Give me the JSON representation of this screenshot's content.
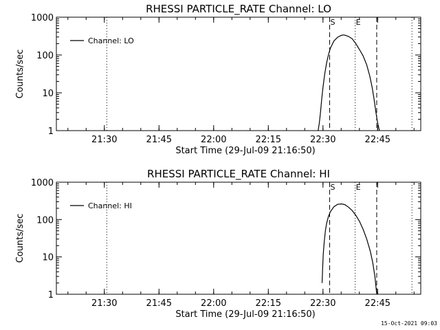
{
  "footer_timestamp": "15-Oct-2021 09:03",
  "chart_data": [
    {
      "type": "line",
      "title": "RHESSI PARTICLE_RATE Channel: LO",
      "xlabel": "Start Time (29-Jul-09 21:16:50)",
      "ylabel": "Counts/sec",
      "yscale": "log",
      "xlim": [
        "21:16:50",
        "22:56:50"
      ],
      "ylim": [
        1,
        1000
      ],
      "xticks": [
        "21:30",
        "21:45",
        "22:00",
        "22:15",
        "22:30",
        "22:45"
      ],
      "yticks": [
        "1",
        "10",
        "100",
        "1000"
      ],
      "grid": false,
      "legend": {
        "position": "top-left",
        "entries": [
          "Channel: LO"
        ]
      },
      "markers": [
        {
          "time": "21:30:40",
          "style": "dotted",
          "label": ""
        },
        {
          "time": "22:31:50",
          "style": "dashed",
          "label": "S"
        },
        {
          "time": "22:38:50",
          "style": "dotted",
          "label": "E"
        },
        {
          "time": "22:44:45",
          "style": "dashed",
          "label": ""
        },
        {
          "time": "22:54:25",
          "style": "dotted",
          "label": ""
        }
      ],
      "series": [
        {
          "name": "Channel: LO",
          "x": [
            "22:28:40",
            "22:29:00",
            "22:29:20",
            "22:29:40",
            "22:30:00",
            "22:30:30",
            "22:31:00",
            "22:31:30",
            "22:32:00",
            "22:33:00",
            "22:34:00",
            "22:35:00",
            "22:35:30",
            "22:36:00",
            "22:37:00",
            "22:38:00",
            "22:39:00",
            "22:40:00",
            "22:41:00",
            "22:42:00",
            "22:42:50",
            "22:43:30",
            "22:44:00",
            "22:44:30",
            "22:45:00",
            "22:45:30"
          ],
          "values": [
            1,
            1.6,
            3.2,
            7,
            14,
            32,
            62,
            100,
            150,
            235,
            295,
            330,
            340,
            335,
            310,
            270,
            200,
            140,
            95,
            55,
            28,
            14,
            7,
            3.2,
            1.6,
            1
          ]
        }
      ]
    },
    {
      "type": "line",
      "title": "RHESSI PARTICLE_RATE Channel: HI",
      "xlabel": "Start Time (29-Jul-09 21:16:50)",
      "ylabel": "Counts/sec",
      "yscale": "log",
      "xlim": [
        "21:16:50",
        "22:56:50"
      ],
      "ylim": [
        1,
        1000
      ],
      "xticks": [
        "21:30",
        "21:45",
        "22:00",
        "22:15",
        "22:30",
        "22:45"
      ],
      "yticks": [
        "1",
        "10",
        "100",
        "1000"
      ],
      "grid": false,
      "legend": {
        "position": "top-left",
        "entries": [
          "Channel: HI"
        ]
      },
      "markers": [
        {
          "time": "21:30:40",
          "style": "dotted",
          "label": ""
        },
        {
          "time": "22:31:50",
          "style": "dashed",
          "label": "S"
        },
        {
          "time": "22:38:50",
          "style": "dotted",
          "label": "E"
        },
        {
          "time": "22:44:45",
          "style": "dashed",
          "label": ""
        },
        {
          "time": "22:54:25",
          "style": "dotted",
          "label": ""
        }
      ],
      "series": [
        {
          "name": "Channel: HI",
          "x": [
            "22:29:45",
            "22:29:55",
            "22:30:05",
            "22:30:20",
            "22:30:40",
            "22:31:00",
            "22:31:30",
            "22:32:00",
            "22:33:00",
            "22:34:00",
            "22:35:00",
            "22:35:30",
            "22:36:00",
            "22:37:00",
            "22:38:00",
            "22:39:00",
            "22:40:00",
            "22:41:00",
            "22:42:00",
            "22:43:00",
            "22:43:40",
            "22:44:15",
            "22:44:45"
          ],
          "values": [
            2,
            5,
            12,
            25,
            50,
            80,
            120,
            160,
            220,
            255,
            262,
            258,
            250,
            215,
            175,
            130,
            90,
            55,
            30,
            14,
            7,
            3,
            1
          ]
        }
      ]
    }
  ]
}
